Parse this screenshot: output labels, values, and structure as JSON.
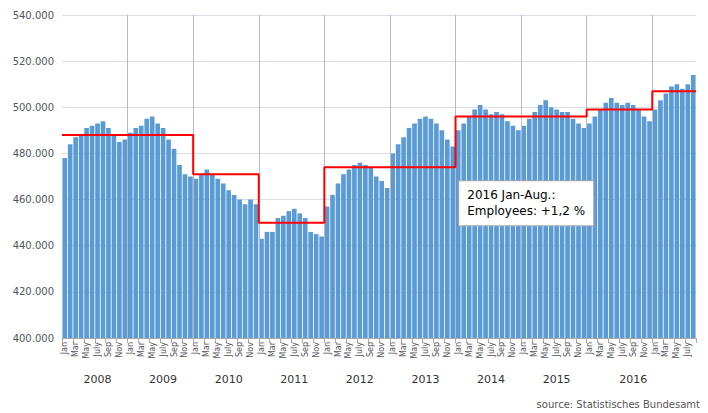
{
  "chart_data": {
    "type": "bar",
    "categories": [
      "Jan",
      null,
      "Mar",
      null,
      "May",
      null,
      "July",
      null,
      "Sep",
      null,
      "Nov",
      null,
      "Jan",
      null,
      "Mar",
      null,
      "May",
      null,
      "July",
      null,
      "Sep",
      null,
      "Nov",
      null,
      "Jan",
      null,
      "Mar",
      null,
      "May",
      null,
      "July",
      null,
      "Sep",
      null,
      "Nov",
      null,
      "Jan",
      null,
      "Mar",
      null,
      "May",
      null,
      "July",
      null,
      "Sep",
      null,
      "Nov",
      null,
      "Jan",
      null,
      "Mar",
      null,
      "May",
      null,
      "July",
      null,
      "Sep",
      null,
      "Nov",
      null,
      "Jan",
      null,
      "Mar",
      null,
      "May",
      null,
      "July",
      null,
      "Sep",
      null,
      "Nov",
      null,
      "Jan",
      null,
      "Mar",
      null,
      "May",
      null,
      "July",
      null,
      "Sep",
      null,
      "Nov",
      null,
      "Jan",
      null,
      "Mar",
      null,
      "May",
      null,
      "July",
      null,
      "Sep",
      null,
      "Nov",
      null,
      "Jan",
      null,
      "Mar",
      null,
      "May",
      null,
      "July",
      null,
      "Sep",
      null,
      "Nov",
      null,
      "Jan",
      null,
      "Mar",
      null,
      "May",
      null,
      "July",
      null
    ],
    "year_categories": [
      null,
      null,
      null,
      null,
      null,
      null,
      "2008",
      null,
      null,
      null,
      null,
      null,
      null,
      null,
      null,
      null,
      null,
      null,
      "2009",
      null,
      null,
      null,
      null,
      null,
      null,
      null,
      null,
      null,
      null,
      null,
      "2010",
      null,
      null,
      null,
      null,
      null,
      null,
      null,
      null,
      null,
      null,
      null,
      "2011",
      null,
      null,
      null,
      null,
      null,
      null,
      null,
      null,
      null,
      null,
      null,
      "2012",
      null,
      null,
      null,
      null,
      null,
      null,
      null,
      null,
      null,
      null,
      null,
      "2013",
      null,
      null,
      null,
      null,
      null,
      null,
      null,
      null,
      null,
      null,
      null,
      "2014",
      null,
      null,
      null,
      null,
      null,
      null,
      null,
      null,
      null,
      null,
      null,
      "2015",
      null,
      null,
      null,
      null,
      null,
      null,
      null,
      null,
      null,
      null,
      null,
      null,
      null,
      "2016",
      null,
      null,
      null,
      null,
      null,
      null,
      null,
      null,
      null,
      null,
      null
    ],
    "values": [
      478000,
      484000,
      487000,
      488000,
      491000,
      492000,
      493000,
      494000,
      491000,
      488000,
      485000,
      486000,
      489000,
      491000,
      492000,
      495000,
      496000,
      493000,
      491000,
      486000,
      482000,
      475000,
      471000,
      470000,
      469000,
      471000,
      473000,
      471000,
      469000,
      467000,
      464000,
      462000,
      460000,
      458000,
      460000,
      458000,
      443000,
      446000,
      446000,
      452000,
      453000,
      455000,
      456000,
      454000,
      452000,
      446000,
      445000,
      444000,
      457000,
      462000,
      467000,
      471000,
      473000,
      475000,
      476000,
      475000,
      474000,
      470000,
      468000,
      465000,
      480000,
      484000,
      487000,
      491000,
      493000,
      495000,
      496000,
      495000,
      493000,
      490000,
      486000,
      483000,
      490000,
      493000,
      496000,
      499000,
      501000,
      499000,
      497000,
      498000,
      497000,
      494000,
      492000,
      490000,
      492000,
      495000,
      498000,
      501000,
      503000,
      500000,
      499000,
      498000,
      498000,
      495000,
      493000,
      491000,
      493000,
      496000,
      499000,
      502000,
      504000,
      502000,
      501000,
      502000,
      501000,
      499000,
      496000,
      494000,
      499000,
      503000,
      506000,
      509000,
      510000,
      508000,
      510000,
      514000
    ],
    "color": "#5B9BD5",
    "line_steps": [
      {
        "start": 0,
        "end": 23,
        "value": 488000
      },
      {
        "start": 24,
        "end": 35,
        "value": 471000
      },
      {
        "start": 36,
        "end": 47,
        "value": 450000
      },
      {
        "start": 48,
        "end": 71,
        "value": 474000
      },
      {
        "start": 72,
        "end": 95,
        "value": 496000
      },
      {
        "start": 96,
        "end": 107,
        "value": 499000
      },
      {
        "start": 108,
        "end": 115,
        "value": 507000
      }
    ],
    "line_color": "#FF0000",
    "year_dividers": [
      12,
      24,
      36,
      48,
      60,
      72,
      84,
      96,
      108
    ],
    "ylim": [
      400000,
      540000
    ],
    "yticks": [
      {
        "value": 400000,
        "label": "400.000"
      },
      {
        "value": 420000,
        "label": "420.000"
      },
      {
        "value": 440000,
        "label": "440.000"
      },
      {
        "value": 460000,
        "label": "460.000"
      },
      {
        "value": 480000,
        "label": "480.000"
      },
      {
        "value": 500000,
        "label": "500.000"
      },
      {
        "value": 520000,
        "label": "520.000"
      },
      {
        "value": 540000,
        "label": "540.000"
      }
    ],
    "grid": true,
    "annotations": [
      "2016 Jan-Aug.:",
      "Employees: +1,2 %"
    ],
    "source": "source: Statistisches Bundesamt"
  }
}
